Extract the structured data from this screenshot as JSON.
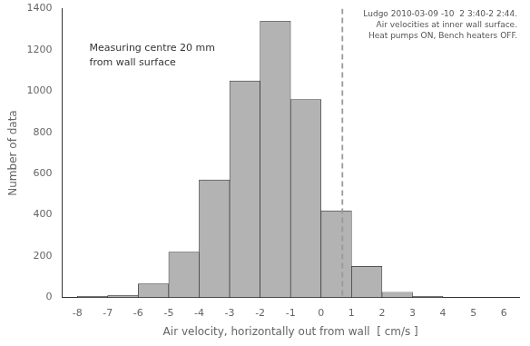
{
  "chart_data": {
    "type": "histogram",
    "bins": [
      -8,
      -7,
      -6,
      -5,
      -4,
      -3,
      -2,
      -1,
      0,
      1,
      2,
      3,
      4,
      5,
      6
    ],
    "values": [
      5,
      10,
      65,
      220,
      570,
      1050,
      1340,
      960,
      420,
      150,
      25,
      5,
      0,
      0
    ],
    "color": "#b3b3b3",
    "x_label": "Air velocity, horizontally out from wall  [ cm/s ]",
    "y_label": "Number of data",
    "xlim": [
      -8.5,
      6.5
    ],
    "ylim": [
      0,
      1400
    ],
    "xticks": [
      -8,
      -7,
      -6,
      -5,
      -4,
      -3,
      -2,
      -1,
      0,
      1,
      2,
      3,
      4,
      5,
      6
    ],
    "yticks": [
      0,
      200,
      400,
      600,
      800,
      1000,
      1200,
      1400
    ],
    "reference_line": {
      "x": 0.7,
      "line_style": "dashed",
      "color": "#999999"
    },
    "annotations": [
      "Ludgo 2010-03-09 -10  2 3:40-2 2:44.",
      "Air velocities at inner wall surface.",
      "Heat pumps ON, Bench heaters OFF."
    ],
    "inset_text": "Measuring centre 20 mm\nfrom wall surface",
    "grid": false
  }
}
